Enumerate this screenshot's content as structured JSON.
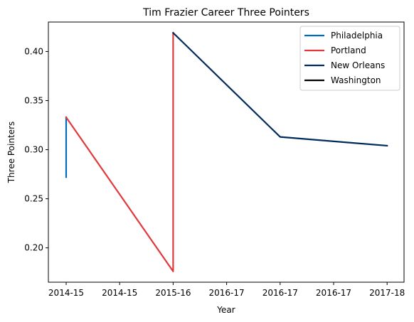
{
  "chart_data": {
    "type": "line",
    "title": "Tim Frazier Career Three Pointers",
    "xlabel": "Year",
    "ylabel": "Three Pointers",
    "x_ticks": [
      "2014-15",
      "2014-15",
      "2015-16",
      "2016-17",
      "2016-17",
      "2016-17",
      "2017-18"
    ],
    "y_ticks": [
      "0.20",
      "0.25",
      "0.30",
      "0.35",
      "0.40"
    ],
    "ylim": [
      0.165,
      0.43
    ],
    "grid": false,
    "legend_position": "top-right",
    "series": [
      {
        "name": "Philadelphia",
        "color": "#006BB6",
        "points": [
          {
            "x": 0,
            "y": 0.272
          },
          {
            "x": 0,
            "y": 0.333
          }
        ]
      },
      {
        "name": "Portland",
        "color": "#E03A3E",
        "points": [
          {
            "x": 0,
            "y": 0.333
          },
          {
            "x": 2,
            "y": 0.176
          },
          {
            "x": 2,
            "y": 0.419
          }
        ]
      },
      {
        "name": "New Orleans",
        "color": "#002B5C",
        "points": [
          {
            "x": 2,
            "y": 0.419
          },
          {
            "x": 4,
            "y": 0.313
          },
          {
            "x": 6,
            "y": 0.304
          }
        ]
      },
      {
        "name": "Washington",
        "color": "#000000",
        "points": []
      }
    ]
  }
}
